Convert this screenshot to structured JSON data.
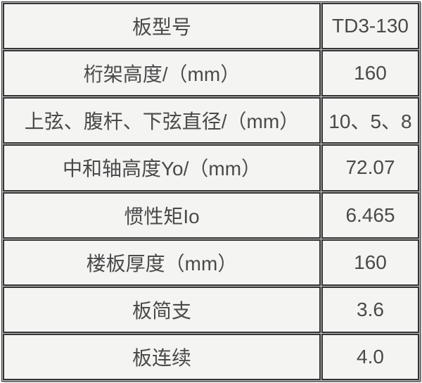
{
  "table": {
    "rows": [
      {
        "label": "板型号",
        "value": "TD3-130"
      },
      {
        "label": "桁架高度/（mm）",
        "value": "160"
      },
      {
        "label": "上弦、腹杆、下弦直径/（mm）",
        "value": "10、5、8"
      },
      {
        "label": "中和轴高度Yo/（mm）",
        "value": "72.07"
      },
      {
        "label": "惯性矩Io",
        "value": "6.465"
      },
      {
        "label": "楼板厚度（mm）",
        "value": "160"
      },
      {
        "label": "板简支",
        "value": "3.6"
      },
      {
        "label": "板连续",
        "value": "4.0"
      }
    ]
  },
  "colors": {
    "border": "#333333",
    "gap": "#c9c9c9",
    "cell_background": "#f4f4f3",
    "text": "#4a4a4a",
    "page_background": "#ffffff"
  }
}
